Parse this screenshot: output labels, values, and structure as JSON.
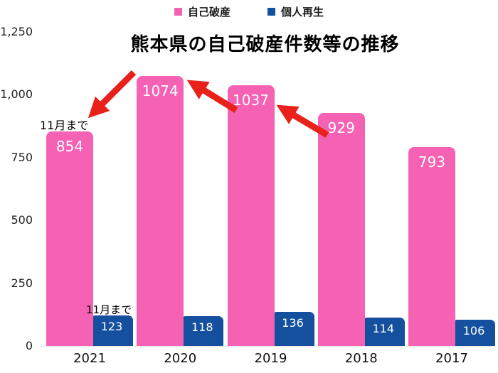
{
  "title": "熊本県の自己破産件数等の推移",
  "legend": {
    "items": [
      "自己破産",
      "個人再生"
    ]
  },
  "chart_data": {
    "type": "bar",
    "title": "熊本県の自己破産件数等の推移",
    "categories": [
      "2021",
      "2020",
      "2019",
      "2018",
      "2017"
    ],
    "series": [
      {
        "name": "自己破産",
        "color": "#f561b3",
        "values": [
          854,
          1074,
          1037,
          929,
          793
        ]
      },
      {
        "name": "個人再生",
        "color": "#15509f",
        "values": [
          123,
          118,
          136,
          114,
          106
        ]
      }
    ],
    "ylim": [
      0,
      1250
    ],
    "ytick_labels": [
      "1,250",
      "1,000",
      "750",
      "500",
      "250",
      "0"
    ],
    "ytick_values": [
      1250,
      1000,
      750,
      500,
      250,
      0
    ],
    "grid": false,
    "legend_position": "top",
    "annotations": [
      {
        "text": "11月まで",
        "applies_to": "自己破産 2021"
      },
      {
        "text": "11月まで",
        "applies_to": "個人再生 2021"
      }
    ],
    "arrow_color": "#e8211a"
  }
}
